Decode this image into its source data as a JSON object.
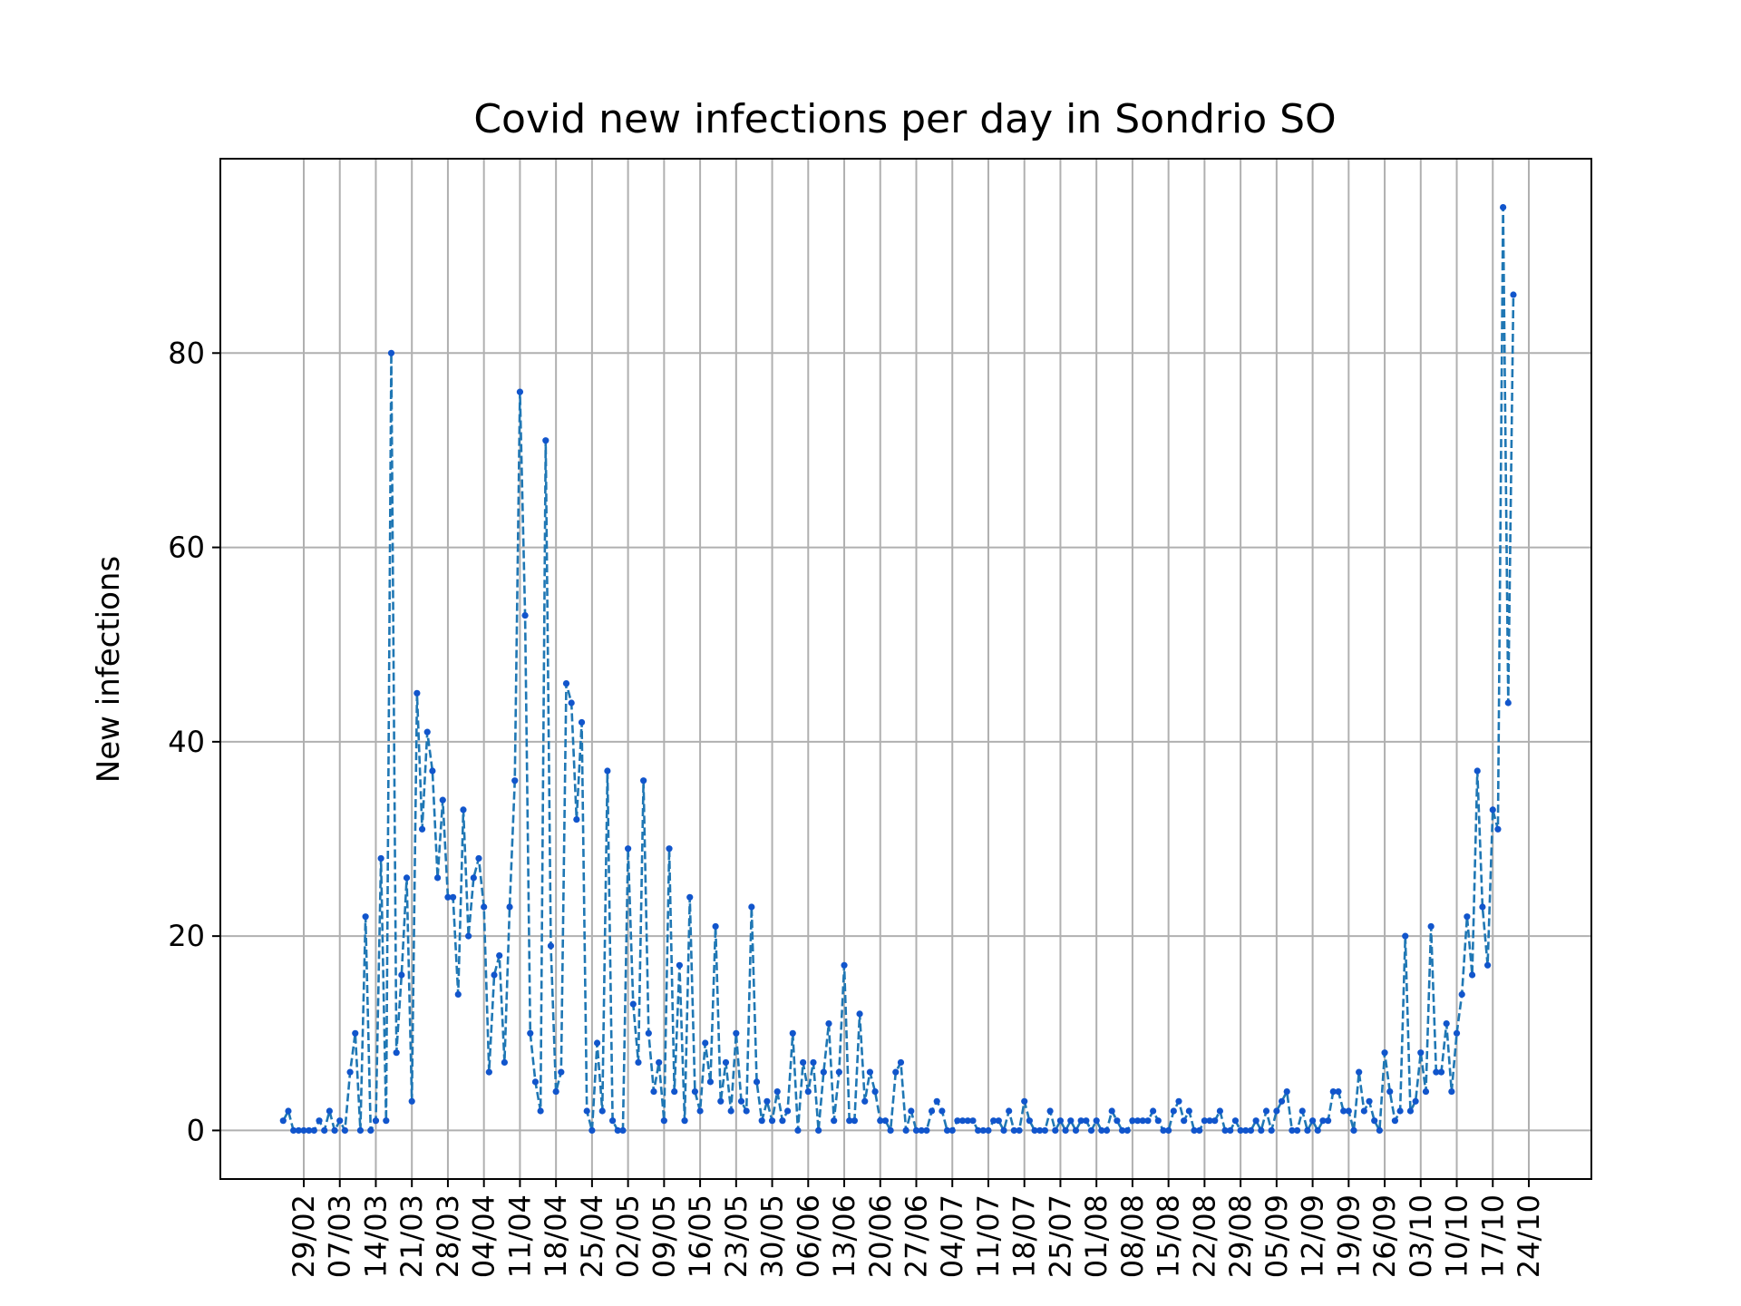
{
  "chart_data": {
    "type": "line",
    "title": "Covid new infections per day in Sondrio SO",
    "xlabel": "",
    "ylabel": "New infections",
    "grid": true,
    "x_tick_labels": [
      "29/02",
      "07/03",
      "14/03",
      "21/03",
      "28/03",
      "04/04",
      "11/04",
      "18/04",
      "25/04",
      "02/05",
      "09/05",
      "16/05",
      "23/05",
      "30/05",
      "06/06",
      "13/06",
      "20/06",
      "27/06",
      "04/07",
      "11/07",
      "18/07",
      "25/07",
      "01/08",
      "08/08",
      "15/08",
      "22/08",
      "29/08",
      "05/09",
      "12/09",
      "19/09",
      "26/09",
      "03/10",
      "10/10",
      "17/10",
      "24/10"
    ],
    "y_ticks": [
      0,
      20,
      40,
      60,
      80
    ],
    "ylim": [
      -5,
      100
    ],
    "series": [
      {
        "color": "#1f77b4",
        "marker_color": "#1155cc",
        "line_style": "dashed",
        "start_date": "2020-02-25",
        "values": [
          1,
          2,
          0,
          0,
          0,
          0,
          0,
          1,
          0,
          2,
          0,
          1,
          0,
          6,
          10,
          0,
          22,
          0,
          1,
          28,
          1,
          80,
          8,
          16,
          26,
          3,
          45,
          31,
          41,
          37,
          26,
          34,
          24,
          24,
          14,
          33,
          20,
          26,
          28,
          23,
          6,
          16,
          18,
          7,
          23,
          36,
          76,
          53,
          10,
          5,
          2,
          71,
          19,
          4,
          6,
          46,
          44,
          32,
          42,
          2,
          0,
          9,
          2,
          37,
          1,
          0,
          0,
          29,
          13,
          7,
          36,
          10,
          4,
          7,
          1,
          29,
          4,
          17,
          1,
          24,
          4,
          2,
          9,
          5,
          21,
          3,
          7,
          2,
          10,
          3,
          2,
          23,
          5,
          1,
          3,
          1,
          4,
          1,
          2,
          10,
          0,
          7,
          4,
          7,
          0,
          6,
          11,
          1,
          6,
          17,
          1,
          1,
          12,
          3,
          6,
          4,
          1,
          1,
          0,
          6,
          7,
          0,
          2,
          0,
          0,
          0,
          2,
          3,
          2,
          0,
          0,
          1,
          1,
          1,
          1,
          0,
          0,
          0,
          1,
          1,
          0,
          2,
          0,
          0,
          3,
          1,
          0,
          0,
          0,
          2,
          0,
          1,
          0,
          1,
          0,
          1,
          1,
          0,
          1,
          0,
          0,
          2,
          1,
          0,
          0,
          1,
          1,
          1,
          1,
          2,
          1,
          0,
          0,
          2,
          3,
          1,
          2,
          0,
          0,
          1,
          1,
          1,
          2,
          0,
          0,
          1,
          0,
          0,
          0,
          1,
          0,
          2,
          0,
          2,
          3,
          4,
          0,
          0,
          2,
          0,
          1,
          0,
          1,
          1,
          4,
          4,
          2,
          2,
          0,
          6,
          2,
          3,
          1,
          0,
          8,
          4,
          1,
          2,
          20,
          2,
          3,
          8,
          4,
          21,
          6,
          6,
          11,
          4,
          10,
          14,
          22,
          16,
          37,
          23,
          17,
          33,
          31,
          95,
          44,
          86
        ]
      }
    ]
  }
}
